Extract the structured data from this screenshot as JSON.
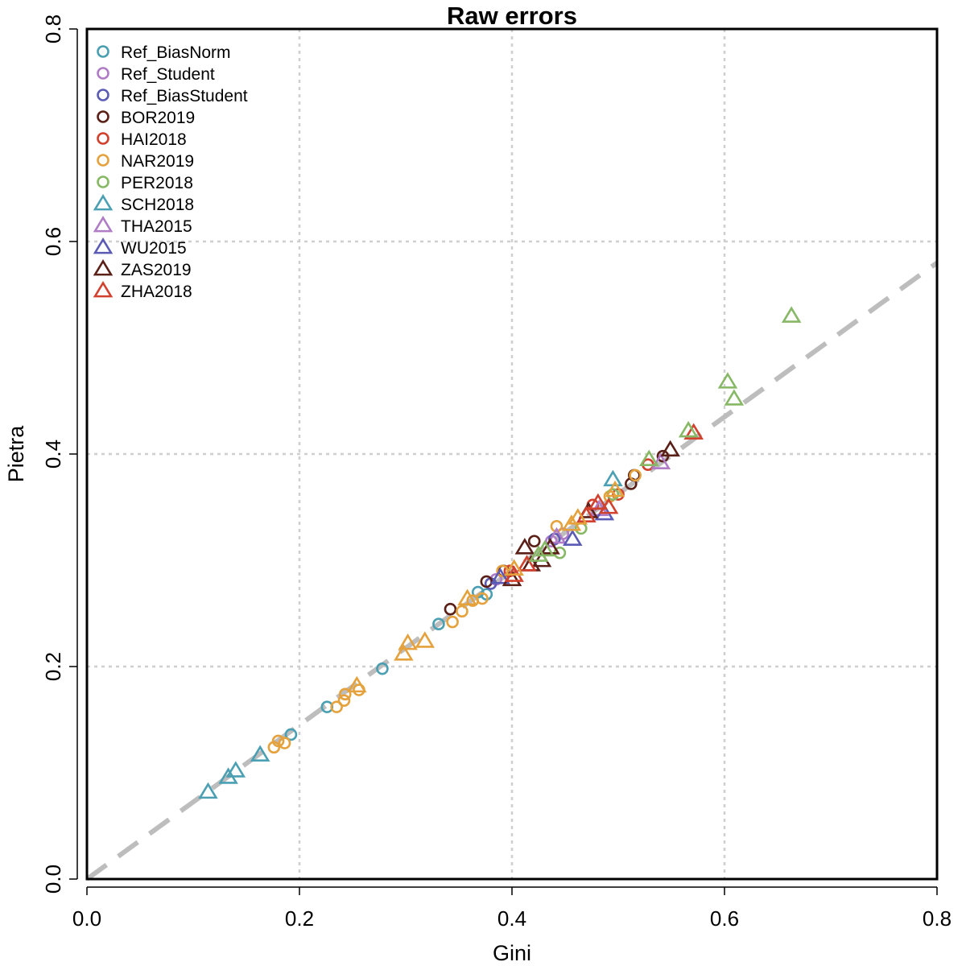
{
  "chart_data": {
    "type": "scatter",
    "title": "Raw errors",
    "xlabel": "Gini",
    "ylabel": "Pietra",
    "xlim": [
      0,
      0.8
    ],
    "ylim": [
      0,
      0.8
    ],
    "x_ticks": [
      "0.0",
      "0.2",
      "0.4",
      "0.6",
      "0.8"
    ],
    "y_ticks": [
      "0.0",
      "0.2",
      "0.4",
      "0.6",
      "0.8"
    ],
    "grid": true,
    "legend_position": "top-left",
    "reference_line": {
      "slope": 0.725,
      "intercept": 0,
      "color": "#bdbdbd",
      "style": "dashed"
    },
    "series": [
      {
        "name": "Ref_BiasNorm",
        "marker": "circle",
        "color": "#4b9fb3",
        "points": [
          [
            0.192,
            0.136
          ],
          [
            0.226,
            0.162
          ],
          [
            0.278,
            0.198
          ],
          [
            0.331,
            0.24
          ],
          [
            0.368,
            0.27
          ],
          [
            0.376,
            0.268
          ]
        ]
      },
      {
        "name": "Ref_Student",
        "marker": "circle",
        "color": "#b07cc6",
        "points": [
          [
            0.385,
            0.282
          ],
          [
            0.437,
            0.318
          ],
          [
            0.448,
            0.325
          ]
        ]
      },
      {
        "name": "Ref_BiasStudent",
        "marker": "circle",
        "color": "#5b5bb5",
        "points": [
          [
            0.38,
            0.278
          ],
          [
            0.44,
            0.32
          ]
        ]
      },
      {
        "name": "BOR2019",
        "marker": "circle",
        "color": "#5a2018",
        "points": [
          [
            0.342,
            0.254
          ],
          [
            0.376,
            0.28
          ],
          [
            0.392,
            0.29
          ],
          [
            0.421,
            0.318
          ],
          [
            0.512,
            0.372
          ],
          [
            0.515,
            0.38
          ],
          [
            0.542,
            0.398
          ]
        ]
      },
      {
        "name": "HAI2018",
        "marker": "circle",
        "color": "#d2402e",
        "points": [
          [
            0.398,
            0.29
          ],
          [
            0.476,
            0.352
          ],
          [
            0.5,
            0.362
          ],
          [
            0.528,
            0.39
          ]
        ]
      },
      {
        "name": "NAR2019",
        "marker": "circle",
        "color": "#e5a23c",
        "points": [
          [
            0.176,
            0.124
          ],
          [
            0.18,
            0.13
          ],
          [
            0.186,
            0.128
          ],
          [
            0.235,
            0.162
          ],
          [
            0.242,
            0.168
          ],
          [
            0.243,
            0.174
          ],
          [
            0.256,
            0.178
          ],
          [
            0.344,
            0.242
          ],
          [
            0.353,
            0.252
          ],
          [
            0.363,
            0.262
          ],
          [
            0.372,
            0.264
          ],
          [
            0.391,
            0.29
          ],
          [
            0.442,
            0.332
          ],
          [
            0.492,
            0.36
          ],
          [
            0.516,
            0.38
          ]
        ]
      },
      {
        "name": "PER2018",
        "marker": "circle",
        "color": "#87b865",
        "points": [
          [
            0.445,
            0.307
          ],
          [
            0.465,
            0.33
          ],
          [
            0.495,
            0.362
          ]
        ]
      },
      {
        "name": "SCH2018",
        "marker": "triangle",
        "color": "#4b9fb3",
        "points": [
          [
            0.114,
            0.082
          ],
          [
            0.133,
            0.096
          ],
          [
            0.14,
            0.102
          ],
          [
            0.163,
            0.117
          ],
          [
            0.495,
            0.376
          ]
        ]
      },
      {
        "name": "THA2015",
        "marker": "triangle",
        "color": "#b07cc6",
        "points": [
          [
            0.442,
            0.322
          ],
          [
            0.482,
            0.348
          ],
          [
            0.54,
            0.392
          ]
        ]
      },
      {
        "name": "WU2015",
        "marker": "triangle",
        "color": "#5b5bb5",
        "points": [
          [
            0.389,
            0.284
          ],
          [
            0.457,
            0.32
          ],
          [
            0.487,
            0.344
          ]
        ]
      },
      {
        "name": "ZAS2019",
        "marker": "triangle",
        "color": "#5a2018",
        "points": [
          [
            0.4,
            0.282
          ],
          [
            0.412,
            0.312
          ],
          [
            0.418,
            0.296
          ],
          [
            0.428,
            0.3
          ],
          [
            0.436,
            0.312
          ],
          [
            0.472,
            0.346
          ],
          [
            0.549,
            0.404
          ]
        ]
      },
      {
        "name": "ZHA2018",
        "marker": "triangle",
        "color": "#d2402e",
        "points": [
          [
            0.402,
            0.286
          ],
          [
            0.414,
            0.296
          ],
          [
            0.47,
            0.342
          ],
          [
            0.481,
            0.354
          ],
          [
            0.491,
            0.35
          ],
          [
            0.571,
            0.42
          ]
        ]
      },
      {
        "name": "",
        "marker": "triangle",
        "color": "#e5a23c",
        "in_legend": false,
        "points": [
          [
            0.254,
            0.182
          ],
          [
            0.298,
            0.212
          ],
          [
            0.302,
            0.222
          ],
          [
            0.318,
            0.224
          ],
          [
            0.358,
            0.264
          ],
          [
            0.402,
            0.292
          ],
          [
            0.456,
            0.334
          ],
          [
            0.462,
            0.34
          ],
          [
            0.497,
            0.366
          ]
        ]
      },
      {
        "name": "",
        "marker": "triangle",
        "color": "#87b865",
        "in_legend": false,
        "points": [
          [
            0.425,
            0.305
          ],
          [
            0.431,
            0.31
          ],
          [
            0.529,
            0.395
          ],
          [
            0.566,
            0.422
          ],
          [
            0.603,
            0.468
          ],
          [
            0.609,
            0.452
          ],
          [
            0.663,
            0.53
          ]
        ]
      }
    ]
  }
}
